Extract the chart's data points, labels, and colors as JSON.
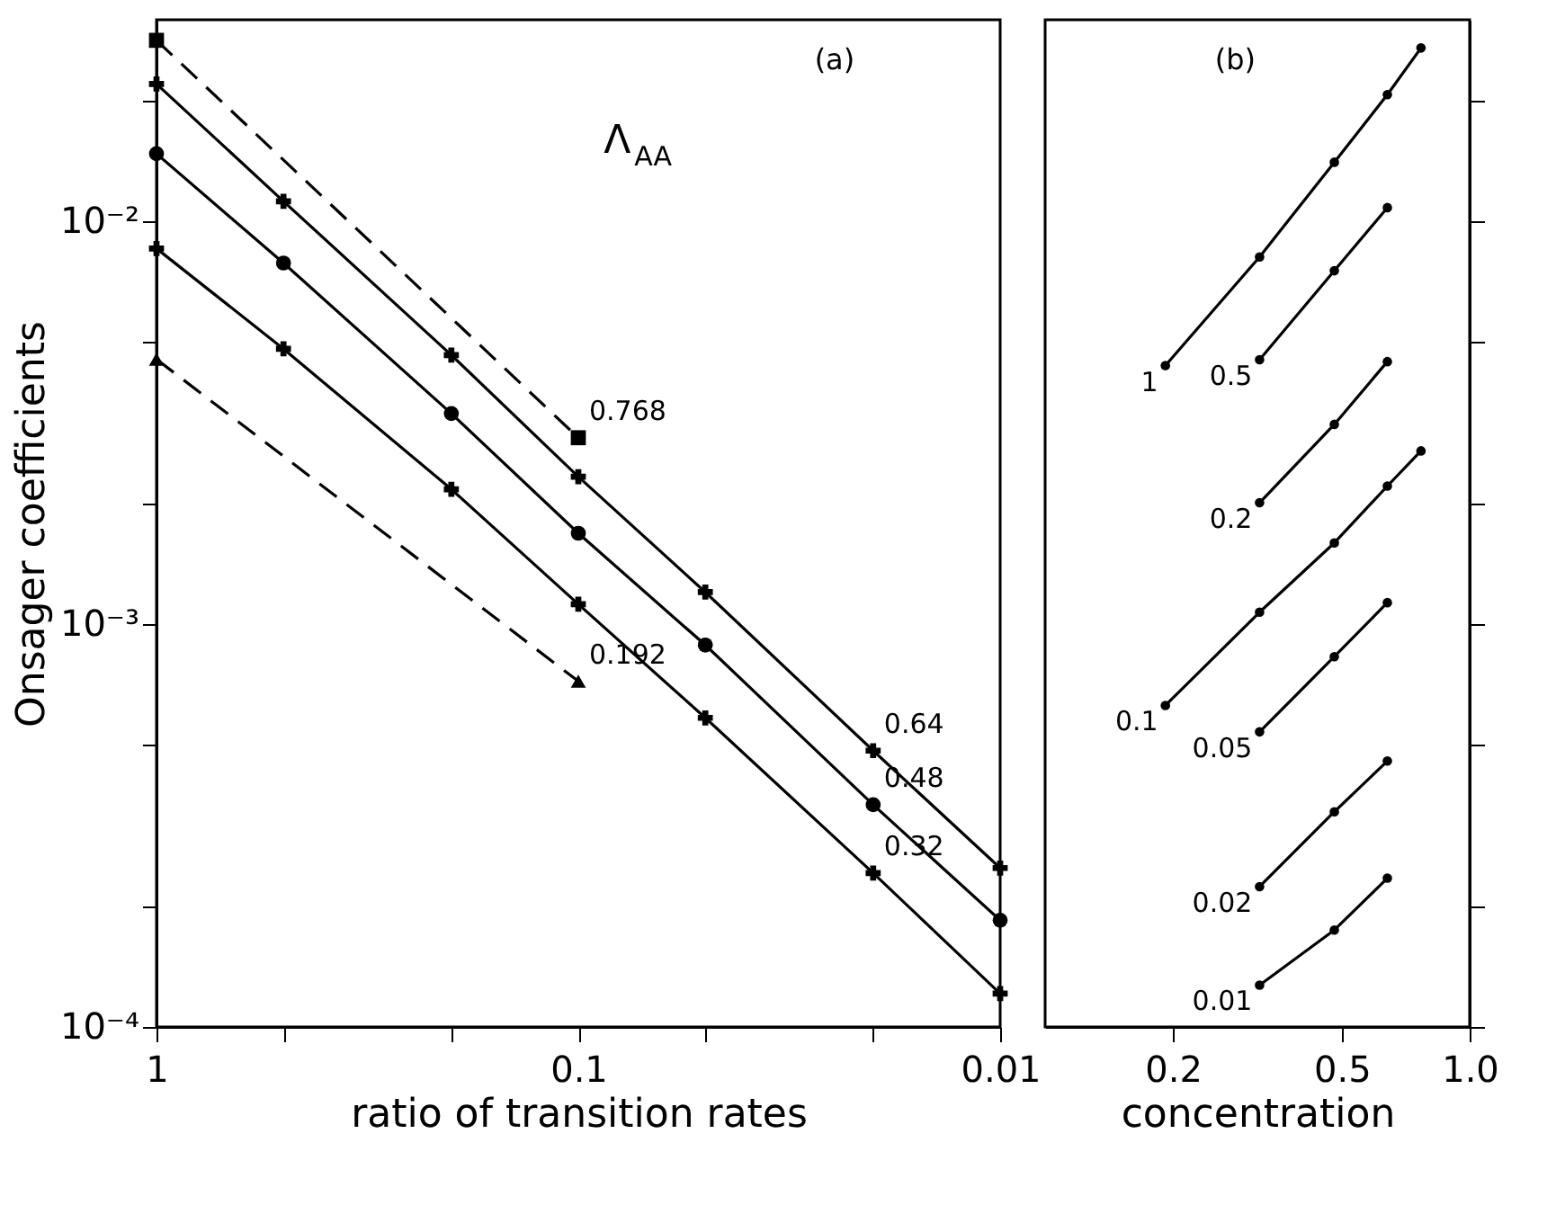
{
  "chart_data": [
    {
      "type": "line",
      "xlabel": "ratio of transition rates",
      "ylabel": "Onsager coefficients",
      "log": "xy",
      "xlim": [
        1,
        0.01
      ],
      "ylim": [
        0.0001,
        0.0316
      ],
      "xticks": [
        1,
        {
          "value": 0.5,
          "label": null
        },
        {
          "value": 0.2,
          "label": null
        },
        0.1,
        {
          "value": 0.05,
          "label": null
        },
        {
          "value": 0.02,
          "label": null
        },
        0.01
      ],
      "yticks": [
        {
          "value": 0.0001,
          "label": "10⁻⁴"
        },
        {
          "value": 0.0002,
          "label": null
        },
        {
          "value": 0.0005,
          "label": null
        },
        {
          "value": 0.001,
          "label": "10⁻³"
        },
        {
          "value": 0.002,
          "label": null
        },
        {
          "value": 0.005,
          "label": null
        },
        {
          "value": 0.01,
          "label": "10⁻²"
        },
        {
          "value": 0.02,
          "label": null
        }
      ],
      "annotations": [
        "(a)",
        "Λ$_{AA}$"
      ],
      "series": [
        {
          "name": "0.768",
          "color": "#000000",
          "marker": "square",
          "line_style": "dashed",
          "x": [
            1,
            0.1
          ],
          "values": [
            0.0281,
            0.0029
          ]
        },
        {
          "name": "0.64",
          "color": "#000000",
          "marker": "cross",
          "line_style": "solid",
          "x": [
            1,
            0.5,
            0.2,
            0.1,
            0.05,
            0.02,
            0.01
          ],
          "values": [
            0.0219,
            0.0112,
            0.00465,
            0.00232,
            0.0012,
            0.000485,
            0.000248
          ]
        },
        {
          "name": "0.48",
          "color": "#000000",
          "marker": "circle",
          "line_style": "solid",
          "x": [
            1,
            0.5,
            0.2,
            0.1,
            0.05,
            0.02,
            0.01
          ],
          "values": [
            0.0147,
            0.00787,
            0.00333,
            0.00168,
            0.000887,
            0.000356,
            0.000184
          ]
        },
        {
          "name": "0.32",
          "color": "#000000",
          "marker": "cross",
          "line_style": "solid",
          "x": [
            1,
            0.5,
            0.2,
            0.1,
            0.05,
            0.02,
            0.01
          ],
          "values": [
            0.00855,
            0.00482,
            0.00216,
            0.00112,
            0.000585,
            0.000241,
            0.000121
          ]
        },
        {
          "name": "0.192",
          "color": "#000000",
          "marker": "triangle",
          "line_style": "dashed",
          "x": [
            1,
            0.1
          ],
          "values": [
            0.00454,
            0.000721
          ]
        }
      ]
    },
    {
      "type": "line",
      "xlabel": "concentration",
      "log": "xy",
      "tick_labels": "x",
      "xlim": [
        0.1,
        1.0
      ],
      "ylim": [
        0.0001,
        0.0316
      ],
      "xticks": [
        0.2,
        0.5,
        {
          "value": 1.0,
          "label": "1.0"
        }
      ],
      "yticks": [
        {
          "value": 0.0001,
          "label": null
        },
        {
          "value": 0.0002,
          "label": null
        },
        {
          "value": 0.0005,
          "label": null
        },
        {
          "value": 0.001,
          "label": null
        },
        {
          "value": 0.002,
          "label": null
        },
        {
          "value": 0.005,
          "label": null
        },
        {
          "value": 0.01,
          "label": null
        },
        {
          "value": 0.02,
          "label": null
        }
      ],
      "annotations": [
        "(b)"
      ],
      "marker": "circle",
      "line_style": "solid",
      "series": [
        {
          "name": "1",
          "color": "#000000",
          "x": [
            0.192,
            0.32,
            0.48,
            0.64,
            0.768
          ],
          "values": [
            0.00438,
            0.00815,
            0.014,
            0.0206,
            0.0269
          ]
        },
        {
          "name": "0.5",
          "color": "#000000",
          "x": [
            0.32,
            0.48,
            0.64
          ],
          "values": [
            0.00453,
            0.00753,
            0.0108
          ]
        },
        {
          "name": "0.2",
          "color": "#000000",
          "x": [
            0.32,
            0.48,
            0.64
          ],
          "values": [
            0.002,
            0.00313,
            0.00448
          ]
        },
        {
          "name": "0.1",
          "color": "#000000",
          "x": [
            0.192,
            0.32,
            0.48,
            0.64,
            0.768
          ],
          "values": [
            0.000628,
            0.00107,
            0.00159,
            0.0022,
            0.00269
          ]
        },
        {
          "name": "0.05",
          "color": "#000000",
          "x": [
            0.32,
            0.48,
            0.64
          ],
          "values": [
            0.00054,
            0.00083,
            0.00113
          ]
        },
        {
          "name": "0.02",
          "color": "#000000",
          "x": [
            0.32,
            0.48,
            0.64
          ],
          "values": [
            0.000223,
            0.000342,
            0.000457
          ]
        },
        {
          "name": "0.01",
          "color": "#000000",
          "x": [
            0.32,
            0.48,
            0.64
          ],
          "values": [
            0.000127,
            0.000174,
            0.000234
          ]
        }
      ]
    }
  ]
}
